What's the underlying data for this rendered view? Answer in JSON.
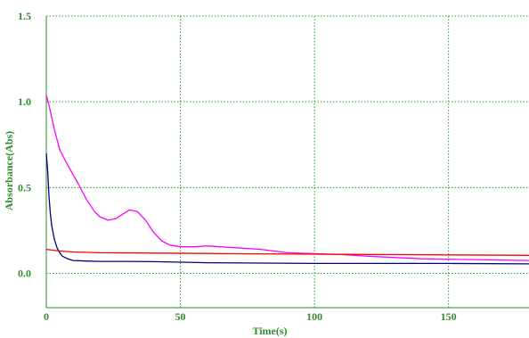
{
  "chart_data": {
    "type": "line",
    "title": "",
    "xlabel": "Time(s)",
    "ylabel": "Absorbance(Abs)",
    "xlim": [
      0,
      180
    ],
    "ylim": [
      -0.2,
      1.5
    ],
    "x_ticks": [
      0,
      50,
      100,
      150
    ],
    "x_tick_labels": [
      "0",
      "50",
      "100",
      "150"
    ],
    "y_ticks": [
      0.0,
      0.5,
      1.0,
      1.5
    ],
    "y_tick_labels": [
      "0.0",
      "0.5",
      "1.0",
      "1.5"
    ],
    "grid": true,
    "series": [
      {
        "color": "#ff00ff",
        "x": [
          0,
          1,
          3,
          5,
          8,
          12,
          15,
          18,
          20,
          23,
          26,
          29,
          31,
          34,
          37,
          40,
          43,
          46,
          50,
          55,
          60,
          65,
          70,
          80,
          90,
          100,
          110,
          120,
          140,
          160,
          180
        ],
        "y": [
          1.04,
          0.98,
          0.84,
          0.72,
          0.63,
          0.52,
          0.43,
          0.36,
          0.33,
          0.31,
          0.32,
          0.35,
          0.37,
          0.36,
          0.31,
          0.24,
          0.19,
          0.165,
          0.155,
          0.155,
          0.16,
          0.155,
          0.15,
          0.14,
          0.12,
          0.115,
          0.11,
          0.1,
          0.085,
          0.08,
          0.075
        ]
      },
      {
        "color": "#000080",
        "x": [
          0,
          0.5,
          1,
          1.5,
          2,
          3,
          4,
          5,
          6,
          8,
          10,
          15,
          20,
          30,
          40,
          50,
          60,
          80,
          100,
          120,
          150,
          180
        ],
        "y": [
          0.7,
          0.6,
          0.45,
          0.35,
          0.28,
          0.2,
          0.15,
          0.12,
          0.1,
          0.085,
          0.075,
          0.072,
          0.07,
          0.07,
          0.068,
          0.065,
          0.062,
          0.06,
          0.058,
          0.058,
          0.058,
          0.055
        ]
      },
      {
        "color": "#ff0000",
        "x": [
          0,
          5,
          10,
          20,
          40,
          60,
          80,
          100,
          120,
          150,
          180
        ],
        "y": [
          0.14,
          0.13,
          0.125,
          0.12,
          0.118,
          0.116,
          0.114,
          0.112,
          0.11,
          0.108,
          0.105
        ]
      }
    ]
  }
}
